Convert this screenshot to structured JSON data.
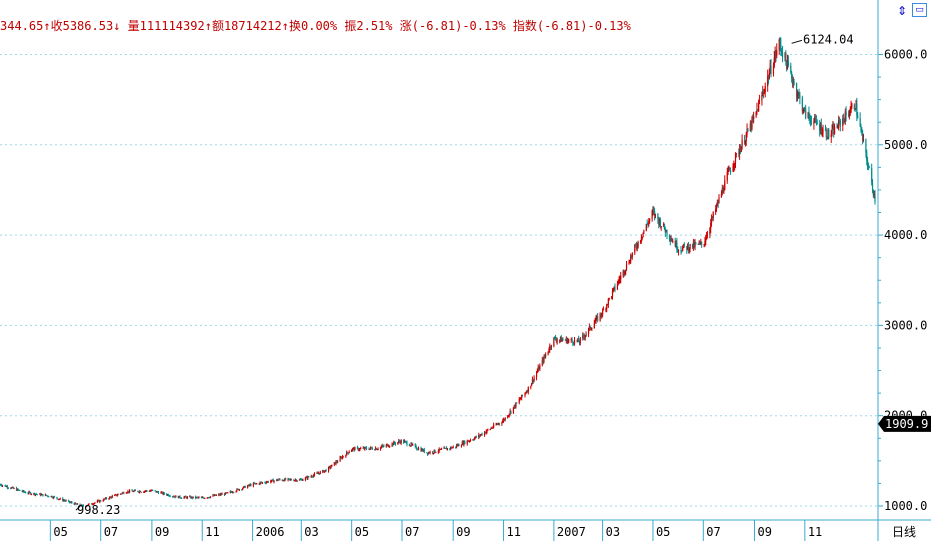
{
  "info_bar": {
    "open": "344.65",
    "open_arrow": "↑",
    "close_label": "收",
    "close": "5386.53",
    "close_arrow": "↓",
    "volume_label": "量",
    "volume": "111114392",
    "volume_arrow": "↑",
    "amount_label": "额",
    "amount": "18714212",
    "amount_arrow": "↑",
    "turnover_label": "换",
    "turnover": "0.00%",
    "amplitude_label": "振",
    "amplitude": "2.51%",
    "change_label": "涨",
    "change": "(-6.81)-0.13%",
    "index_label": "指数",
    "index_change": "(-6.81)-0.13%"
  },
  "toolbar": {
    "sync_icon": "up-down-arrows-icon",
    "window_icon": "window-icon"
  },
  "colors": {
    "up": "#cc0000",
    "down": "#008c8c",
    "grid": "#9fd8e8",
    "axis": "#3ba9d2",
    "info": "#c00000"
  },
  "annotations": {
    "high": "6124.04",
    "low": "998.23"
  },
  "current_price": "1909.9",
  "period_label": "日线",
  "chart_data": {
    "type": "candlestick",
    "title": "",
    "yticks": [
      "1000.0",
      "2000.0",
      "3000.0",
      "4000.0",
      "5000.0",
      "6000.0"
    ],
    "xticks": [
      "05",
      "07",
      "09",
      "11",
      "2006",
      "03",
      "05",
      "07",
      "09",
      "11",
      "2007",
      "03",
      "05",
      "07",
      "09",
      "11"
    ],
    "grid": true,
    "x_control": [
      [
        "2005-03",
        1240
      ],
      [
        "2005-04",
        1150
      ],
      [
        "2005-05",
        1110
      ],
      [
        "2005-06",
        1020
      ],
      [
        "2005-06-10",
        998
      ],
      [
        "2005-07",
        1060
      ],
      [
        "2005-08",
        1160
      ],
      [
        "2005-09",
        1170
      ],
      [
        "2005-10",
        1100
      ],
      [
        "2005-11",
        1090
      ],
      [
        "2005-12",
        1140
      ],
      [
        "2006-01",
        1240
      ],
      [
        "2006-02",
        1290
      ],
      [
        "2006-03",
        1290
      ],
      [
        "2006-04",
        1400
      ],
      [
        "2006-05",
        1630
      ],
      [
        "2006-06",
        1640
      ],
      [
        "2006-07",
        1720
      ],
      [
        "2006-08",
        1590
      ],
      [
        "2006-09",
        1650
      ],
      [
        "2006-10",
        1770
      ],
      [
        "2006-11",
        1950
      ],
      [
        "2006-12",
        2300
      ],
      [
        "2007-01",
        2850
      ],
      [
        "2007-02",
        2820
      ],
      [
        "2007-03",
        3150
      ],
      [
        "2007-04",
        3700
      ],
      [
        "2007-05",
        4250
      ],
      [
        "2007-06",
        3850
      ],
      [
        "2007-07",
        3900
      ],
      [
        "2007-08",
        4700
      ],
      [
        "2007-09",
        5300
      ],
      [
        "2007-10",
        6124
      ],
      [
        "2007-11",
        5350
      ],
      [
        "2007-12",
        5100
      ],
      [
        "2008-01",
        5450
      ],
      [
        "2008-01-25",
        4400
      ]
    ]
  }
}
